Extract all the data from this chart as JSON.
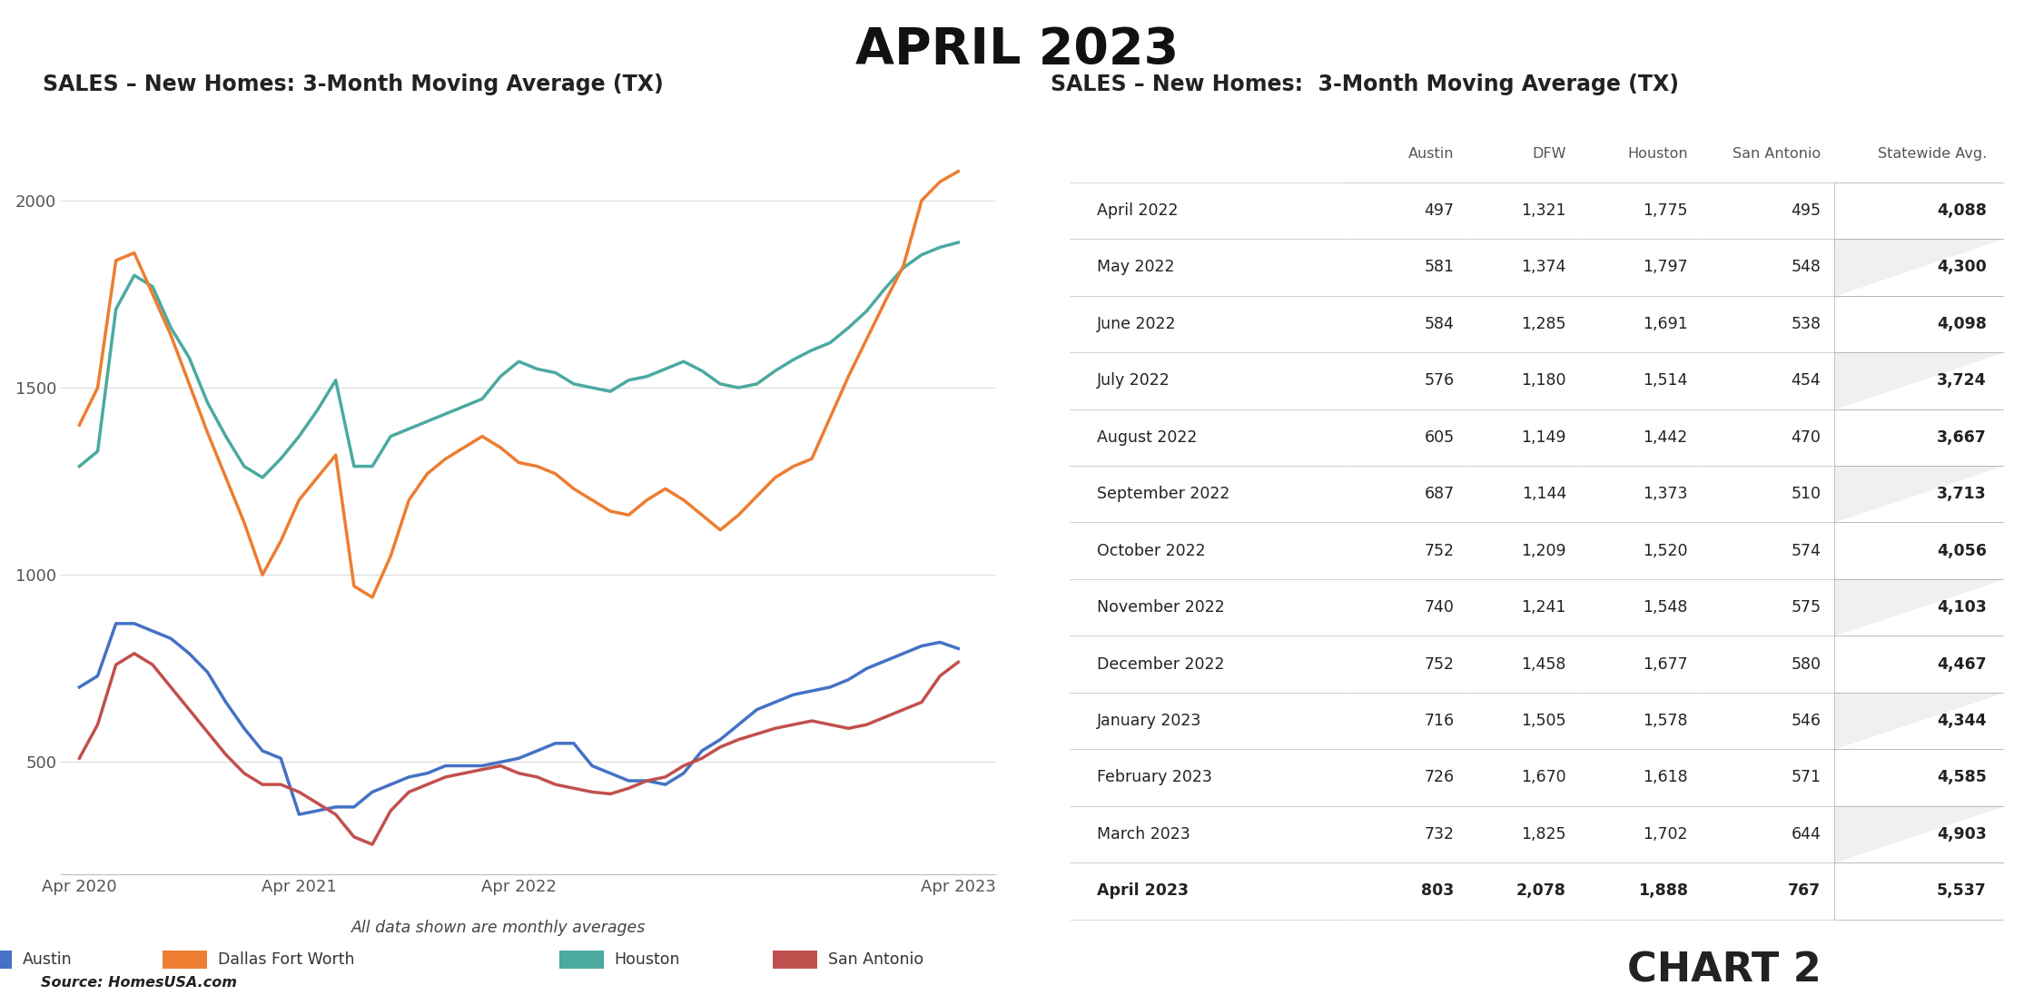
{
  "title": "APRIL 2023",
  "chart_title_left": "SALES – New Homes: 3-Month Moving Average (TX)",
  "chart_title_right": "SALES – New Homes:  3-Month Moving Average (TX)",
  "source": "Source: HomesUSA.com",
  "chart2_label": "CHART 2",
  "subtitle": "All data shown are monthly averages",
  "colors": {
    "austin": "#4472C4",
    "dfw": "#ED7D31",
    "houston": "#4BAAA0",
    "san_antonio": "#C0504D",
    "grid": "#DDDDDD"
  },
  "legend": [
    "Austin",
    "Dallas Fort Worth",
    "Houston",
    "San Antonio"
  ],
  "x_labels": [
    "Apr 2020",
    "Apr 2021",
    "Apr 2022",
    "Apr 2023"
  ],
  "x_tick_positions": [
    0,
    12,
    24,
    48
  ],
  "n_points": 49,
  "austin_data": [
    700,
    730,
    870,
    870,
    850,
    830,
    790,
    740,
    660,
    590,
    530,
    510,
    360,
    370,
    380,
    380,
    420,
    440,
    460,
    470,
    490,
    490,
    490,
    500,
    510,
    530,
    550,
    550,
    490,
    470,
    450,
    450,
    440,
    470,
    530,
    560,
    600,
    640,
    660,
    680,
    690,
    700,
    720,
    750,
    770,
    790,
    810,
    820,
    803
  ],
  "dfw_data": [
    1400,
    1500,
    1840,
    1860,
    1750,
    1640,
    1510,
    1380,
    1260,
    1140,
    1000,
    1090,
    1200,
    1260,
    1320,
    970,
    940,
    1050,
    1200,
    1270,
    1310,
    1340,
    1370,
    1340,
    1300,
    1290,
    1270,
    1230,
    1200,
    1170,
    1160,
    1200,
    1230,
    1200,
    1160,
    1120,
    1160,
    1210,
    1260,
    1290,
    1310,
    1420,
    1530,
    1630,
    1730,
    1825,
    2000,
    2050,
    2078
  ],
  "houston_data": [
    1290,
    1330,
    1710,
    1800,
    1770,
    1660,
    1580,
    1460,
    1370,
    1290,
    1260,
    1310,
    1370,
    1440,
    1520,
    1290,
    1290,
    1370,
    1390,
    1410,
    1430,
    1450,
    1470,
    1530,
    1570,
    1550,
    1540,
    1510,
    1500,
    1490,
    1520,
    1530,
    1550,
    1570,
    1545,
    1510,
    1500,
    1510,
    1545,
    1575,
    1600,
    1620,
    1660,
    1705,
    1765,
    1820,
    1855,
    1875,
    1888
  ],
  "san_antonio_data": [
    510,
    600,
    760,
    790,
    760,
    700,
    640,
    580,
    520,
    470,
    440,
    440,
    420,
    390,
    360,
    300,
    280,
    370,
    420,
    440,
    460,
    470,
    480,
    490,
    470,
    460,
    440,
    430,
    420,
    415,
    430,
    450,
    460,
    490,
    510,
    540,
    560,
    575,
    590,
    600,
    610,
    600,
    590,
    600,
    620,
    640,
    660,
    730,
    767
  ],
  "table_rows": [
    [
      "April 2022",
      "497",
      "1,321",
      "1,775",
      "495",
      "4,088"
    ],
    [
      "May 2022",
      "581",
      "1,374",
      "1,797",
      "548",
      "4,300"
    ],
    [
      "June 2022",
      "584",
      "1,285",
      "1,691",
      "538",
      "4,098"
    ],
    [
      "July 2022",
      "576",
      "1,180",
      "1,514",
      "454",
      "3,724"
    ],
    [
      "August 2022",
      "605",
      "1,149",
      "1,442",
      "470",
      "3,667"
    ],
    [
      "September 2022",
      "687",
      "1,144",
      "1,373",
      "510",
      "3,713"
    ],
    [
      "October 2022",
      "752",
      "1,209",
      "1,520",
      "574",
      "4,056"
    ],
    [
      "November 2022",
      "740",
      "1,241",
      "1,548",
      "575",
      "4,103"
    ],
    [
      "December 2022",
      "752",
      "1,458",
      "1,677",
      "580",
      "4,467"
    ],
    [
      "January 2023",
      "716",
      "1,505",
      "1,578",
      "546",
      "4,344"
    ],
    [
      "February 2023",
      "726",
      "1,670",
      "1,618",
      "571",
      "4,585"
    ],
    [
      "March 2023",
      "732",
      "1,825",
      "1,702",
      "644",
      "4,903"
    ],
    [
      "April 2023",
      "803",
      "2,078",
      "1,888",
      "767",
      "5,537"
    ]
  ],
  "table_headers": [
    "",
    "Austin",
    "DFW",
    "Houston",
    "San Antonio",
    "Statewide Avg."
  ]
}
